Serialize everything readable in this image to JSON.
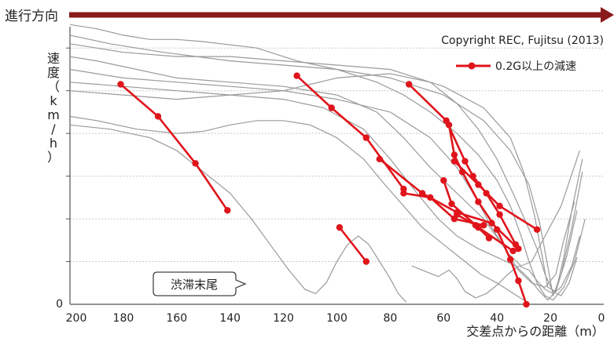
{
  "header": {
    "direction_label": "進行方向"
  },
  "copyright": "Copyright REC, Fujitsu (2013)",
  "callout": {
    "text": "渋滞末尾"
  },
  "colors": {
    "arrow": "#8b1a1a",
    "decel": "#e0141b",
    "trace": "#9a9a9a",
    "grid": "#c8c8c8"
  },
  "chart_data": {
    "type": "line",
    "xlabel": "交差点からの距離（m）",
    "ylabel": "速度（km/h）",
    "xlim": [
      200,
      0
    ],
    "x_ticks": [
      "200",
      "180",
      "160",
      "140",
      "120",
      "100",
      "80",
      "60",
      "40",
      "20",
      "0"
    ],
    "y_ticks": [
      "0"
    ],
    "ylim": [
      0,
      6.5
    ],
    "grid": "horizontal dashed",
    "legend": {
      "position": "top-right",
      "entries": [
        {
          "label": "0.2G以上の減速"
        }
      ]
    },
    "series": [
      {
        "role": "trace",
        "points": [
          [
            200,
            6.3
          ],
          [
            185,
            6.1
          ],
          [
            165,
            5.9
          ],
          [
            140,
            5.7
          ],
          [
            120,
            5.6
          ],
          [
            100,
            5.5
          ],
          [
            80,
            5.3
          ],
          [
            60,
            4.9
          ],
          [
            45,
            4.3
          ],
          [
            35,
            3.6
          ],
          [
            28,
            2.8
          ],
          [
            24,
            1.9
          ],
          [
            21,
            0.9
          ],
          [
            19,
            0.2
          ],
          [
            16,
            0.7
          ],
          [
            12,
            1.8
          ],
          [
            8,
            3.1
          ]
        ]
      },
      {
        "role": "trace",
        "points": [
          [
            200,
            6.1
          ],
          [
            180,
            5.9
          ],
          [
            160,
            5.8
          ],
          [
            140,
            5.8
          ],
          [
            120,
            5.7
          ],
          [
            100,
            5.6
          ],
          [
            80,
            5.5
          ],
          [
            60,
            5.1
          ],
          [
            45,
            4.6
          ],
          [
            35,
            3.9
          ],
          [
            30,
            3.1
          ],
          [
            26,
            2.1
          ],
          [
            23,
            1.1
          ],
          [
            21,
            0.4
          ],
          [
            18,
            0.3
          ],
          [
            15,
            1.1
          ],
          [
            12,
            2.2
          ],
          [
            8,
            3.4
          ]
        ]
      },
      {
        "role": "trace",
        "points": [
          [
            200,
            5.8
          ],
          [
            190,
            5.7
          ],
          [
            175,
            5.5
          ],
          [
            160,
            5.3
          ],
          [
            140,
            5.2
          ],
          [
            120,
            5.1
          ],
          [
            100,
            4.9
          ],
          [
            85,
            4.5
          ],
          [
            75,
            3.9
          ],
          [
            65,
            3.2
          ],
          [
            55,
            2.6
          ],
          [
            45,
            2.0
          ],
          [
            38,
            1.4
          ],
          [
            32,
            0.8
          ],
          [
            27,
            0.5
          ],
          [
            22,
            0.4
          ],
          [
            18,
            0.7
          ],
          [
            15,
            1.5
          ],
          [
            11,
            2.4
          ]
        ]
      },
      {
        "role": "trace",
        "points": [
          [
            200,
            5.5
          ],
          [
            180,
            5.3
          ],
          [
            160,
            5.2
          ],
          [
            140,
            5.1
          ],
          [
            120,
            5.0
          ],
          [
            100,
            4.8
          ],
          [
            80,
            4.5
          ],
          [
            65,
            3.9
          ],
          [
            55,
            3.2
          ],
          [
            48,
            2.5
          ],
          [
            42,
            1.8
          ],
          [
            36,
            1.2
          ],
          [
            31,
            0.9
          ],
          [
            27,
            1.0
          ],
          [
            22,
            1.6
          ],
          [
            16,
            2.3
          ],
          [
            9,
            3.6
          ]
        ]
      },
      {
        "role": "trace",
        "points": [
          [
            200,
            5.2
          ],
          [
            180,
            5.1
          ],
          [
            160,
            5.0
          ],
          [
            140,
            4.9
          ],
          [
            120,
            4.8
          ],
          [
            105,
            4.6
          ],
          [
            90,
            4.1
          ],
          [
            80,
            3.4
          ],
          [
            70,
            2.6
          ],
          [
            62,
            2.0
          ],
          [
            55,
            1.6
          ],
          [
            47,
            1.3
          ],
          [
            40,
            1.1
          ],
          [
            33,
            0.9
          ],
          [
            28,
            0.6
          ],
          [
            24,
            0.3
          ],
          [
            21,
            0.1
          ],
          [
            18,
            0.3
          ],
          [
            14,
            1.1
          ],
          [
            10,
            2.2
          ]
        ]
      },
      {
        "role": "trace",
        "points": [
          [
            200,
            4.4
          ],
          [
            190,
            4.3
          ],
          [
            175,
            4.1
          ],
          [
            160,
            4.0
          ],
          [
            150,
            4.05
          ],
          [
            140,
            4.2
          ],
          [
            130,
            4.3
          ],
          [
            120,
            4.3
          ],
          [
            110,
            4.2
          ],
          [
            100,
            3.9
          ],
          [
            90,
            3.4
          ],
          [
            82,
            2.8
          ],
          [
            75,
            2.3
          ],
          [
            68,
            1.8
          ],
          [
            60,
            1.4
          ],
          [
            52,
            1.0
          ],
          [
            46,
            0.7
          ],
          [
            40,
            0.5
          ],
          [
            35,
            0.3
          ],
          [
            30,
            0.1
          ]
        ]
      },
      {
        "role": "trace",
        "points": [
          [
            200,
            4.2
          ],
          [
            185,
            4.1
          ],
          [
            170,
            3.9
          ],
          [
            160,
            3.6
          ],
          [
            150,
            3.1
          ],
          [
            140,
            2.6
          ],
          [
            132,
            2.0
          ],
          [
            125,
            1.4
          ],
          [
            118,
            0.8
          ],
          [
            112,
            0.35
          ],
          [
            108,
            0.25
          ],
          [
            104,
            0.5
          ],
          [
            100,
            1.0
          ],
          [
            96,
            1.4
          ],
          [
            92,
            1.6
          ],
          [
            88,
            1.4
          ],
          [
            84,
            1.0
          ],
          [
            80,
            0.6
          ],
          [
            77,
            0.25
          ],
          [
            74,
            0.05
          ]
        ]
      },
      {
        "role": "trace",
        "points": [
          [
            200,
            6.55
          ],
          [
            190,
            6.45
          ],
          [
            180,
            6.3
          ],
          [
            170,
            6.2
          ],
          [
            160,
            6.2
          ],
          [
            150,
            6.15
          ],
          [
            130,
            6.0
          ],
          [
            115,
            5.7
          ],
          [
            100,
            5.5
          ],
          [
            85,
            5.2
          ],
          [
            75,
            4.9
          ],
          [
            65,
            4.5
          ],
          [
            55,
            4.0
          ],
          [
            47,
            3.5
          ],
          [
            40,
            2.9
          ],
          [
            35,
            2.3
          ],
          [
            31,
            1.6
          ],
          [
            28,
            1.0
          ],
          [
            25,
            0.5
          ],
          [
            22,
            0.2
          ],
          [
            19,
            0.1
          ],
          [
            15,
            0.4
          ],
          [
            11,
            1.0
          ],
          [
            7,
            2.0
          ]
        ]
      },
      {
        "role": "trace",
        "points": [
          [
            200,
            5.0
          ],
          [
            180,
            4.9
          ],
          [
            160,
            4.8
          ],
          [
            140,
            4.9
          ],
          [
            120,
            5.0
          ],
          [
            100,
            5.3
          ],
          [
            80,
            5.4
          ],
          [
            65,
            5.2
          ],
          [
            55,
            4.7
          ],
          [
            47,
            4.1
          ],
          [
            40,
            3.4
          ],
          [
            34,
            2.6
          ],
          [
            29,
            1.9
          ],
          [
            25,
            1.3
          ],
          [
            22,
            0.7
          ],
          [
            19,
            0.3
          ],
          [
            16,
            0.2
          ],
          [
            13,
            0.5
          ],
          [
            10,
            1.1
          ]
        ]
      },
      {
        "role": "trace",
        "points": [
          [
            72,
            0.9
          ],
          [
            66,
            0.75
          ],
          [
            62,
            0.65
          ],
          [
            58,
            0.8
          ],
          [
            55,
            0.6
          ],
          [
            52,
            0.3
          ],
          [
            48,
            0.15
          ],
          [
            44,
            0.25
          ],
          [
            40,
            0.45
          ],
          [
            36,
            0.7
          ],
          [
            32,
            0.9
          ],
          [
            28,
            0.8
          ],
          [
            25,
            0.55
          ],
          [
            22,
            0.35
          ],
          [
            19,
            0.25
          ],
          [
            16,
            0.4
          ],
          [
            12,
            0.9
          ],
          [
            9,
            1.6
          ]
        ]
      },
      {
        "role": "decel",
        "points": [
          [
            181,
            5.15
          ],
          [
            167,
            4.4
          ],
          [
            153,
            3.3
          ],
          [
            141,
            2.2
          ]
        ]
      },
      {
        "role": "decel",
        "points": [
          [
            115,
            5.35
          ],
          [
            102,
            4.6
          ],
          [
            89,
            3.9
          ],
          [
            75,
            2.7
          ]
        ]
      },
      {
        "role": "decel",
        "points": [
          [
            73,
            5.15
          ],
          [
            59,
            4.3
          ],
          [
            52,
            3.35
          ],
          [
            49,
            3.0
          ],
          [
            44,
            2.6
          ],
          [
            39,
            2.1
          ],
          [
            33,
            1.4
          ]
        ]
      },
      {
        "role": "decel",
        "points": [
          [
            58,
            4.2
          ],
          [
            56,
            3.5
          ],
          [
            53,
            3.1
          ],
          [
            47,
            2.4
          ],
          [
            40,
            1.75
          ],
          [
            35,
            1.05
          ],
          [
            32,
            0.55
          ],
          [
            29,
            0.0
          ]
        ]
      },
      {
        "role": "decel",
        "points": [
          [
            84,
            3.4
          ],
          [
            68,
            2.6
          ],
          [
            55,
            2.15
          ],
          [
            42,
            1.9
          ],
          [
            32,
            1.3
          ]
        ]
      },
      {
        "role": "decel",
        "points": [
          [
            56,
            3.35
          ],
          [
            47,
            2.8
          ],
          [
            39,
            2.3
          ],
          [
            25,
            1.75
          ]
        ]
      },
      {
        "role": "decel",
        "points": [
          [
            60,
            2.9
          ],
          [
            57,
            2.35
          ],
          [
            47,
            1.8
          ],
          [
            34,
            1.25
          ]
        ]
      },
      {
        "role": "decel",
        "points": [
          [
            75,
            2.6
          ],
          [
            65,
            2.5
          ],
          [
            56,
            2.0
          ],
          [
            45,
            1.85
          ]
        ]
      },
      {
        "role": "decel",
        "points": [
          [
            99,
            1.8
          ],
          [
            89,
            1.0
          ]
        ]
      },
      {
        "role": "decel",
        "points": [
          [
            55,
            2.1
          ],
          [
            48,
            1.85
          ],
          [
            43,
            1.55
          ]
        ]
      }
    ]
  }
}
